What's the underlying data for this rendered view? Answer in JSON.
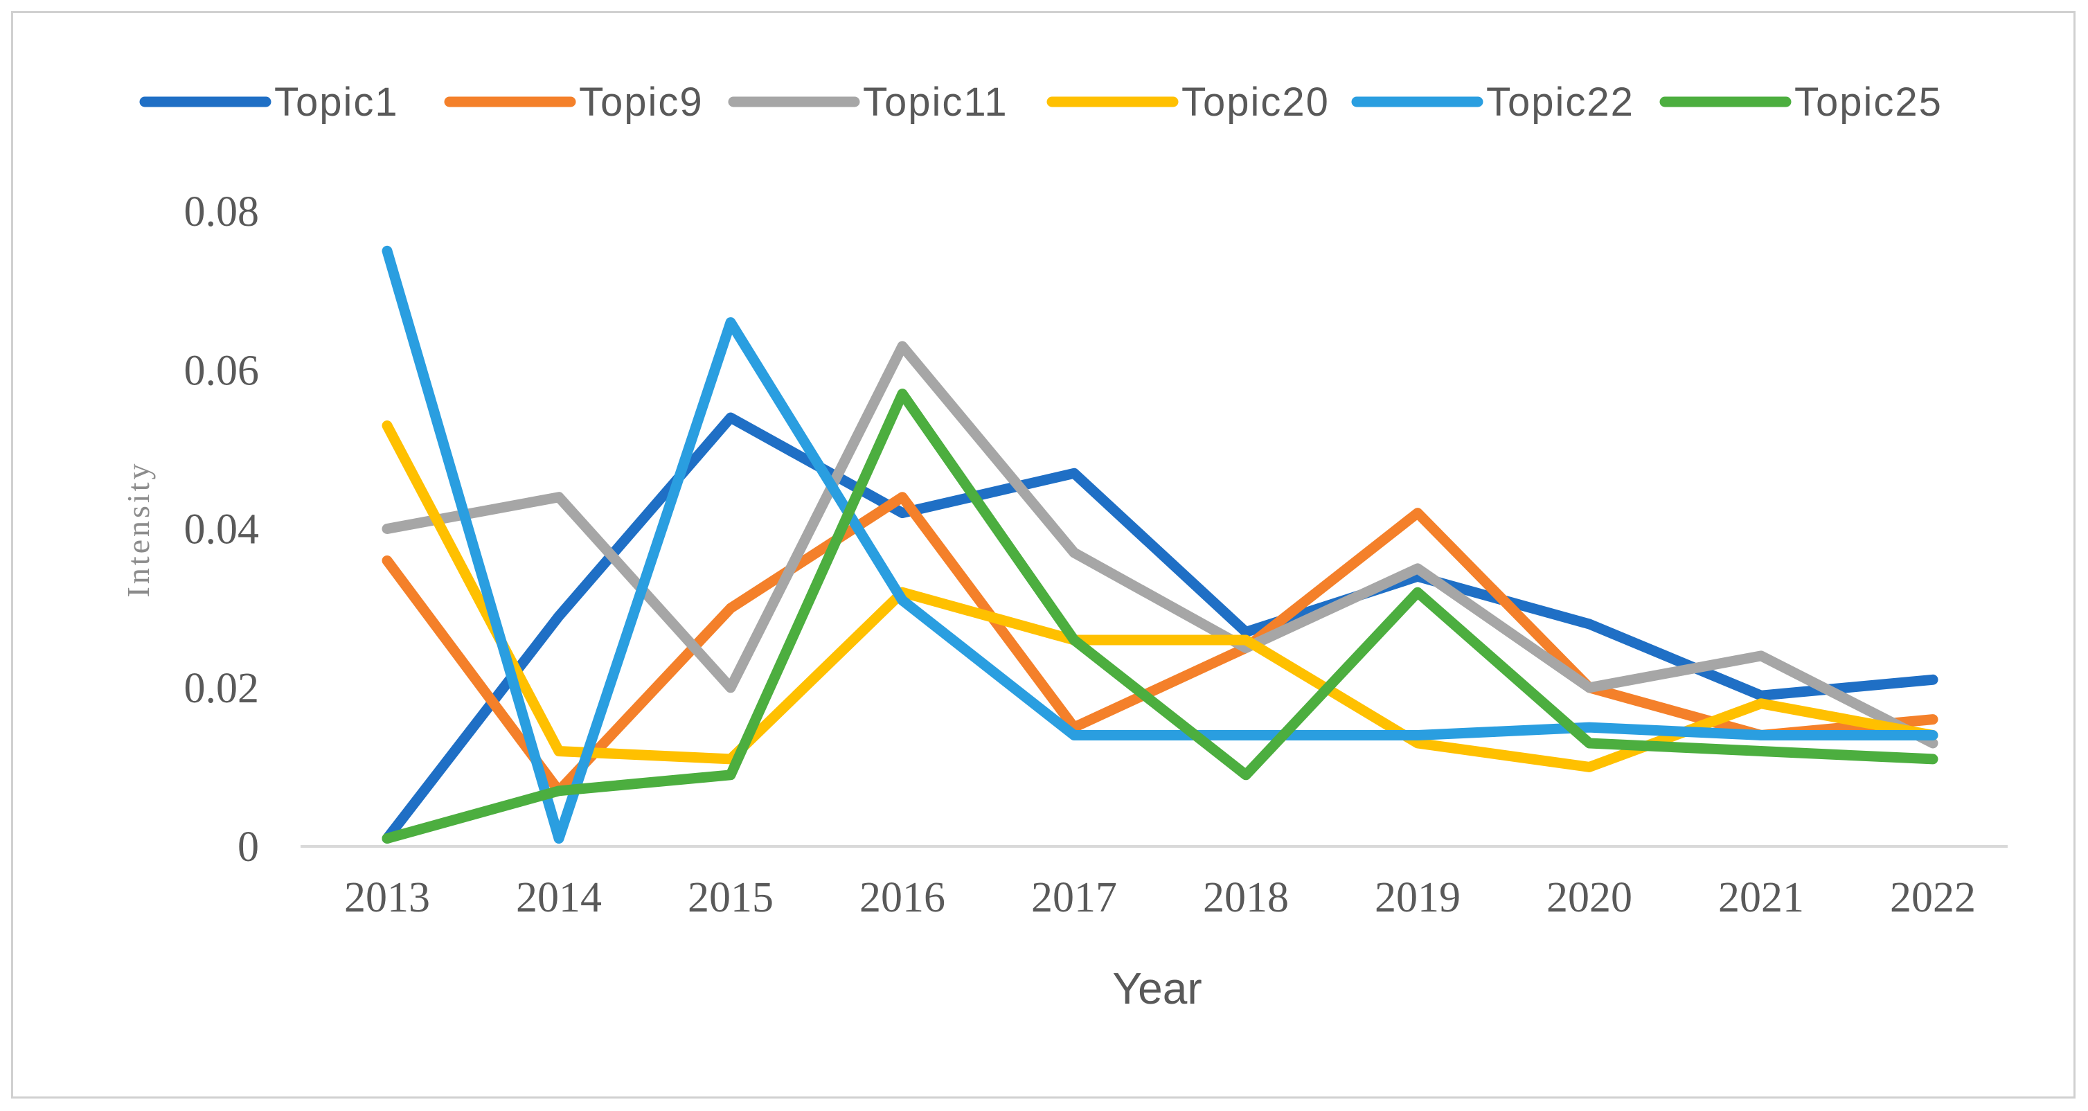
{
  "chart_data": {
    "type": "line",
    "title": "",
    "xlabel": "Year",
    "ylabel": "Intensity",
    "x": [
      "2013",
      "2014",
      "2015",
      "2016",
      "2017",
      "2018",
      "2019",
      "2020",
      "2021",
      "2022"
    ],
    "yticks": [
      "0",
      "0.02",
      "0.04",
      "0.06",
      "0.08"
    ],
    "ylim": [
      0,
      0.08
    ],
    "grid": false,
    "legend": "top",
    "series": [
      {
        "name": "Topic1",
        "color": "#1f6fc5",
        "values": [
          0.001,
          0.029,
          0.054,
          0.042,
          0.047,
          0.027,
          0.034,
          0.028,
          0.019,
          0.021
        ]
      },
      {
        "name": "Topic9",
        "color": "#f4802a",
        "values": [
          0.036,
          0.007,
          0.03,
          0.044,
          0.015,
          0.025,
          0.042,
          0.02,
          0.014,
          0.016
        ]
      },
      {
        "name": "Topic11",
        "color": "#a6a6a6",
        "values": [
          0.04,
          0.044,
          0.02,
          0.063,
          0.037,
          0.025,
          0.035,
          0.02,
          0.024,
          0.013
        ]
      },
      {
        "name": "Topic20",
        "color": "#ffc000",
        "values": [
          0.053,
          0.012,
          0.011,
          0.032,
          0.026,
          0.026,
          0.013,
          0.01,
          0.018,
          0.014
        ]
      },
      {
        "name": "Topic22",
        "color": "#2a9ee0",
        "values": [
          0.075,
          0.001,
          0.066,
          0.031,
          0.014,
          0.014,
          0.014,
          0.015,
          0.014,
          0.014
        ]
      },
      {
        "name": "Topic25",
        "color": "#4cae3f",
        "values": [
          0.001,
          0.007,
          0.009,
          0.057,
          0.026,
          0.009,
          0.032,
          0.013,
          0.012,
          0.011
        ]
      }
    ]
  }
}
